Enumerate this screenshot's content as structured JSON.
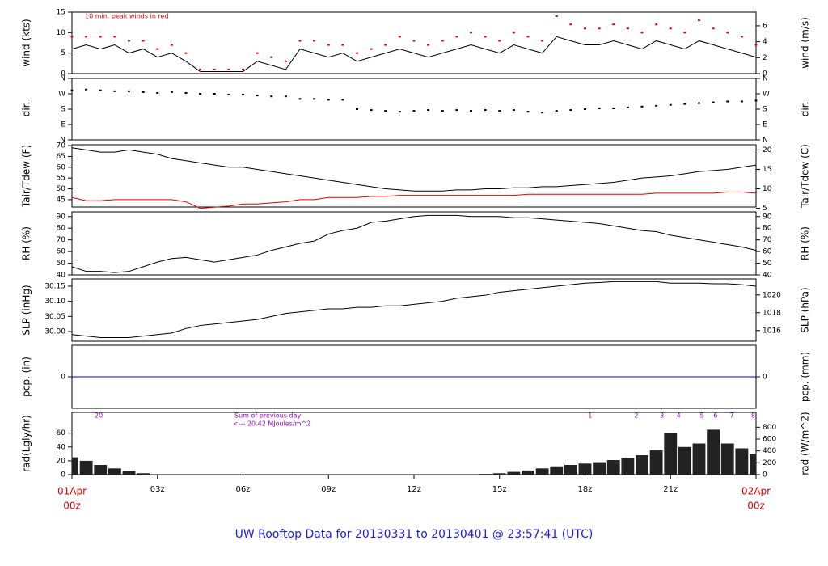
{
  "title": "UW Rooftop Data for 20130331  to  20130401 @ 23:57:41  (UTC)",
  "chart_data": [
    {
      "type": "line",
      "ylabel": "wind (kts)",
      "y2label": "wind (m/s)",
      "annotation": "10 min. peak winds in red",
      "x": [
        0,
        0.5,
        1,
        1.5,
        2,
        2.5,
        3,
        3.5,
        4,
        4.5,
        5,
        5.5,
        6,
        6.5,
        7,
        7.5,
        8,
        8.5,
        9,
        9.5,
        10,
        10.5,
        11,
        11.5,
        12,
        12.5,
        13,
        13.5,
        14,
        14.5,
        15,
        15.5,
        16,
        16.5,
        17,
        17.5,
        18,
        18.5,
        19,
        19.5,
        20,
        20.5,
        21,
        21.5,
        22,
        22.5,
        23,
        23.5,
        24
      ],
      "xlim": [
        0,
        24
      ],
      "ylim": [
        0,
        15
      ],
      "yticks": [
        0,
        5,
        10,
        15
      ],
      "y2lim": [
        0,
        7.72
      ],
      "y2ticks": [
        0,
        2,
        4,
        6
      ],
      "series": [
        {
          "style": "line",
          "color": "#000000",
          "values": [
            6,
            7,
            6,
            7,
            5,
            6,
            4,
            5,
            3,
            0.5,
            0.5,
            0.5,
            0.5,
            3,
            2,
            1,
            6,
            5,
            4,
            5,
            3,
            4,
            5,
            6,
            5,
            4,
            5,
            6,
            7,
            6,
            5,
            7,
            6,
            5,
            9,
            8,
            7,
            7,
            8,
            7,
            6,
            8,
            7,
            6,
            8,
            7,
            6,
            5,
            4
          ]
        },
        {
          "style": "dots",
          "color": "#e00000",
          "values": [
            9,
            9,
            9,
            9,
            8,
            8,
            6,
            7,
            5,
            1,
            1,
            1,
            1,
            5,
            4,
            3,
            8,
            8,
            7,
            7,
            5,
            6,
            7,
            9,
            8,
            7,
            8,
            9,
            10,
            9,
            8,
            10,
            9,
            8,
            14,
            12,
            11,
            11,
            12,
            11,
            10,
            12,
            11,
            10,
            13,
            11,
            10,
            9,
            7
          ]
        }
      ]
    },
    {
      "type": "scatter",
      "ylabel": "dir.",
      "y2label": "dir.",
      "x": [
        0,
        0.5,
        1,
        1.5,
        2,
        2.5,
        3,
        3.5,
        4,
        4.5,
        5,
        5.5,
        6,
        6.5,
        7,
        7.5,
        8,
        8.5,
        9,
        9.5,
        10,
        10.5,
        11,
        11.5,
        12,
        12.5,
        13,
        13.5,
        14,
        14.5,
        15,
        15.5,
        16,
        16.5,
        17,
        17.5,
        18,
        18.5,
        19,
        19.5,
        20,
        20.5,
        21,
        21.5,
        22,
        22.5,
        23,
        23.5,
        24
      ],
      "xlim": [
        0,
        24
      ],
      "ylim": [
        0,
        360
      ],
      "yticks": [
        {
          "value": 0,
          "label": "N"
        },
        {
          "value": 90,
          "label": "E"
        },
        {
          "value": 180,
          "label": "S"
        },
        {
          "value": 270,
          "label": "W"
        },
        {
          "value": 360,
          "label": "N"
        }
      ],
      "y2lim": [
        0,
        360
      ],
      "y2ticks": [
        {
          "value": 0,
          "label": "N"
        },
        {
          "value": 90,
          "label": "E"
        },
        {
          "value": 180,
          "label": "S"
        },
        {
          "value": 270,
          "label": "W"
        },
        {
          "value": 360,
          "label": "N"
        }
      ],
      "series": [
        {
          "style": "dots",
          "color": "#000000",
          "values": [
            290,
            295,
            290,
            285,
            285,
            280,
            275,
            280,
            275,
            270,
            270,
            265,
            265,
            260,
            255,
            255,
            240,
            240,
            235,
            235,
            180,
            175,
            170,
            165,
            170,
            175,
            170,
            175,
            170,
            175,
            170,
            175,
            165,
            160,
            170,
            175,
            180,
            185,
            185,
            190,
            195,
            200,
            205,
            210,
            215,
            220,
            225,
            225,
            230
          ]
        }
      ]
    },
    {
      "type": "line",
      "ylabel": "Tair/Tdew (F)",
      "y2label": "Tair/Tdew (C)",
      "x": [
        0,
        0.5,
        1,
        1.5,
        2,
        2.5,
        3,
        3.5,
        4,
        4.5,
        5,
        5.5,
        6,
        6.5,
        7,
        7.5,
        8,
        8.5,
        9,
        9.5,
        10,
        10.5,
        11,
        11.5,
        12,
        12.5,
        13,
        13.5,
        14,
        14.5,
        15,
        15.5,
        16,
        16.5,
        17,
        17.5,
        18,
        18.5,
        19,
        19.5,
        20,
        20.5,
        21,
        21.5,
        22,
        22.5,
        23,
        23.5,
        24
      ],
      "xlim": [
        0,
        24
      ],
      "ylim": [
        41.6,
        70.4
      ],
      "yticks": [
        45,
        50,
        55,
        60,
        65,
        70
      ],
      "y2lim": [
        5.33,
        21.33
      ],
      "y2ticks": [
        5,
        10,
        15,
        20
      ],
      "series": [
        {
          "style": "line",
          "color": "#000000",
          "values": [
            69,
            68,
            67,
            67,
            68,
            67,
            66,
            64,
            63,
            62,
            61,
            60,
            60,
            59,
            58,
            57,
            56,
            55,
            54,
            53,
            52,
            51,
            50,
            49.5,
            49,
            49,
            49,
            49.5,
            49.5,
            50,
            50,
            50.5,
            50.5,
            51,
            51,
            51.5,
            52,
            52.5,
            53,
            54,
            55,
            55.5,
            56,
            57,
            58,
            58.5,
            59,
            60,
            61
          ]
        },
        {
          "style": "line",
          "color": "#e00000",
          "values": [
            46,
            44.5,
            44.5,
            45,
            45,
            45,
            45,
            45,
            44,
            41,
            41.5,
            42,
            43,
            43,
            43.5,
            44,
            45,
            45,
            46,
            46,
            46,
            46.5,
            46.5,
            47,
            47,
            47,
            47,
            47,
            47,
            47,
            47,
            47,
            47.5,
            47.5,
            47.5,
            47.5,
            47.5,
            47.5,
            47.5,
            47.5,
            47.5,
            48,
            48,
            48,
            48,
            48,
            48.5,
            48.5,
            48
          ]
        }
      ]
    },
    {
      "type": "line",
      "ylabel": "RH (%)",
      "y2label": "RH (%)",
      "x": [
        0,
        0.5,
        1,
        1.5,
        2,
        2.5,
        3,
        3.5,
        4,
        4.5,
        5,
        5.5,
        6,
        6.5,
        7,
        7.5,
        8,
        8.5,
        9,
        9.5,
        10,
        10.5,
        11,
        11.5,
        12,
        12.5,
        13,
        13.5,
        14,
        14.5,
        15,
        15.5,
        16,
        16.5,
        17,
        17.5,
        18,
        18.5,
        19,
        19.5,
        20,
        20.5,
        21,
        21.5,
        22,
        22.5,
        23,
        23.5,
        24
      ],
      "xlim": [
        0,
        24
      ],
      "ylim": [
        40,
        94
      ],
      "yticks": [
        40,
        50,
        60,
        70,
        80,
        90
      ],
      "y2lim": [
        40,
        94
      ],
      "y2ticks": [
        40,
        50,
        60,
        70,
        80,
        90
      ],
      "series": [
        {
          "style": "line",
          "color": "#000000",
          "values": [
            47,
            43,
            43,
            42,
            43,
            47,
            51,
            54,
            55,
            53,
            51,
            53,
            55,
            57,
            61,
            64,
            67,
            69,
            75,
            78,
            80,
            85,
            86,
            88,
            90,
            91,
            91,
            91,
            90,
            90,
            90,
            89,
            89,
            88,
            87,
            86,
            85,
            84,
            82,
            80,
            78,
            77,
            74,
            72,
            70,
            68,
            66,
            64,
            61
          ]
        }
      ]
    },
    {
      "type": "line",
      "ylabel": "SLP (inHg)",
      "y2label": "SLP (hPa)",
      "x": [
        0,
        0.5,
        1,
        1.5,
        2,
        2.5,
        3,
        3.5,
        4,
        4.5,
        5,
        5.5,
        6,
        6.5,
        7,
        7.5,
        8,
        8.5,
        9,
        9.5,
        10,
        10.5,
        11,
        11.5,
        12,
        12.5,
        13,
        13.5,
        14,
        14.5,
        15,
        15.5,
        16,
        16.5,
        17,
        17.5,
        18,
        18.5,
        19,
        19.5,
        20,
        20.5,
        21,
        21.5,
        22,
        22.5,
        23,
        23.5,
        24
      ],
      "xlim": [
        0,
        24
      ],
      "ylim": [
        29.968,
        30.174
      ],
      "yticks": [
        {
          "value": 30,
          "label": "30.00"
        },
        30.05,
        {
          "value": 30.1,
          "label": "30.10"
        },
        30.15
      ],
      "y2lim": [
        1014.8,
        1021.8
      ],
      "y2ticks": [
        1016,
        1018,
        1020
      ],
      "series": [
        {
          "style": "line",
          "color": "#000000",
          "values": [
            29.99,
            29.985,
            29.98,
            29.98,
            29.98,
            29.985,
            29.99,
            29.995,
            30.01,
            30.02,
            30.025,
            30.03,
            30.035,
            30.04,
            30.05,
            30.06,
            30.065,
            30.07,
            30.075,
            30.075,
            30.08,
            30.08,
            30.085,
            30.085,
            30.09,
            30.095,
            30.1,
            30.11,
            30.115,
            30.12,
            30.13,
            30.135,
            30.14,
            30.145,
            30.15,
            30.155,
            30.16,
            30.162,
            30.165,
            30.165,
            30.165,
            30.165,
            30.16,
            30.16,
            30.16,
            30.158,
            30.158,
            30.155,
            30.15
          ]
        }
      ]
    },
    {
      "type": "line",
      "ylabel": "pcp. (in)",
      "y2label": "pcp. (mm)",
      "x": [
        0,
        0.5,
        1,
        1.5,
        2,
        2.5,
        3,
        3.5,
        4,
        4.5,
        5,
        5.5,
        6,
        6.5,
        7,
        7.5,
        8,
        8.5,
        9,
        9.5,
        10,
        10.5,
        11,
        11.5,
        12,
        12.5,
        13,
        13.5,
        14,
        14.5,
        15,
        15.5,
        16,
        16.5,
        17,
        17.5,
        18,
        18.5,
        19,
        19.5,
        20,
        20.5,
        21,
        21.5,
        22,
        22.5,
        23,
        23.5,
        24
      ],
      "xlim": [
        0,
        24
      ],
      "ylim": [
        -1,
        1
      ],
      "yticks": [
        0
      ],
      "y2lim": [
        -1,
        1
      ],
      "y2ticks": [
        0
      ],
      "series": [
        {
          "style": "line",
          "color": "#0000cc",
          "values": [
            0,
            0,
            0,
            0,
            0,
            0,
            0,
            0,
            0,
            0,
            0,
            0,
            0,
            0,
            0,
            0,
            0,
            0,
            0,
            0,
            0,
            0,
            0,
            0,
            0,
            0,
            0,
            0,
            0,
            0,
            0,
            0,
            0,
            0,
            0,
            0,
            0,
            0,
            0,
            0,
            0,
            0,
            0,
            0,
            0,
            0,
            0,
            0,
            0
          ]
        }
      ]
    },
    {
      "type": "bar",
      "ylabel": "rad(Lgly/hr)",
      "y2label": "rad (W/m^2)",
      "annotations": [
        "Sum of previous day",
        "<--- 20.42 MJoules/m^2"
      ],
      "hour_sums": [
        {
          "x": 0.94,
          "label": "20"
        },
        {
          "x": 18.18,
          "label": "1"
        },
        {
          "x": 19.8,
          "label": "2"
        },
        {
          "x": 20.7,
          "label": "3"
        },
        {
          "x": 21.28,
          "label": "4"
        },
        {
          "x": 22.1,
          "label": "5"
        },
        {
          "x": 22.58,
          "label": "6"
        },
        {
          "x": 23.15,
          "label": "7"
        },
        {
          "x": 23.9,
          "label": "8"
        }
      ],
      "x": [
        0,
        0.5,
        1,
        1.5,
        2,
        2.5,
        3,
        3.5,
        4,
        4.5,
        5,
        5.5,
        6,
        6.5,
        7,
        7.5,
        8,
        8.5,
        9,
        9.5,
        10,
        10.5,
        11,
        11.5,
        12,
        12.5,
        13,
        13.5,
        14,
        14.5,
        15,
        15.5,
        16,
        16.5,
        17,
        17.5,
        18,
        18.5,
        19,
        19.5,
        20,
        20.5,
        21,
        21.5,
        22,
        22.5,
        23,
        23.5,
        24
      ],
      "xlim": [
        0,
        24
      ],
      "ylim": [
        0,
        90
      ],
      "yticks": [
        0,
        20,
        40,
        60
      ],
      "y2lim": [
        0,
        1050
      ],
      "y2ticks": [
        0,
        200,
        400,
        600,
        800
      ],
      "xticks": [
        {
          "value": 0,
          "label": "00z"
        },
        {
          "value": 3,
          "label": "03z"
        },
        {
          "value": 6,
          "label": "06z"
        },
        {
          "value": 9,
          "label": "09z"
        },
        {
          "value": 12,
          "label": "12z"
        },
        {
          "value": 15,
          "label": "15z"
        },
        {
          "value": 18,
          "label": "18z"
        },
        {
          "value": 21,
          "label": "21z"
        },
        {
          "value": 24,
          "label": "00z"
        }
      ],
      "date_labels": [
        {
          "value": 0,
          "label": "01Apr"
        },
        {
          "value": 24,
          "label": "02Apr"
        }
      ],
      "series": [
        {
          "style": "bars",
          "color": "#222222",
          "values": [
            25,
            20,
            14,
            9,
            5,
            2,
            0,
            0,
            0,
            0,
            0,
            0,
            0,
            0,
            0,
            0,
            0,
            0,
            0,
            0,
            0,
            0,
            0,
            0,
            0,
            0,
            0,
            0,
            0,
            1,
            2,
            4,
            6,
            9,
            12,
            14,
            16,
            18,
            21,
            24,
            28,
            35,
            60,
            40,
            45,
            65,
            45,
            38,
            30
          ]
        }
      ]
    }
  ]
}
